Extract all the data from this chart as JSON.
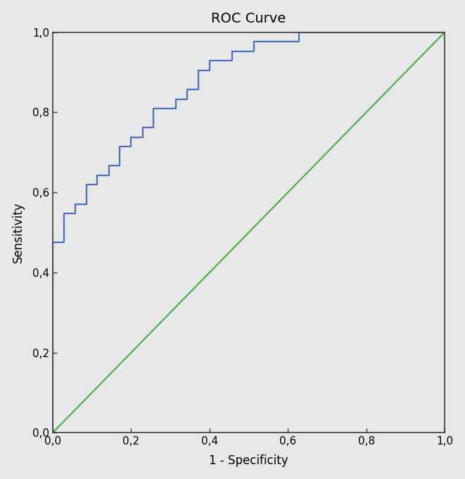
{
  "title": "ROC Curve",
  "xlabel": "1 - Specificity",
  "ylabel": "Sensitivity",
  "xlim": [
    0.0,
    1.0
  ],
  "ylim": [
    0.0,
    1.0
  ],
  "xticks": [
    0.0,
    0.2,
    0.4,
    0.6,
    0.8,
    1.0
  ],
  "yticks": [
    0.0,
    0.2,
    0.4,
    0.6,
    0.8,
    1.0
  ],
  "tick_labels": [
    "0,0",
    "0,2",
    "0,4",
    "0,6",
    "0,8",
    "1,0"
  ],
  "plot_bg_color": "#e8e8e8",
  "fig_bg_color": "#e8e8e8",
  "roc_color": "#4a6fbd",
  "diagonal_color": "#4caf50",
  "roc_linewidth": 1.6,
  "diagonal_linewidth": 1.6,
  "title_fontsize": 14,
  "label_fontsize": 12,
  "tick_fontsize": 11,
  "roc_x": [
    0.0,
    0.0,
    0.029,
    0.029,
    0.057,
    0.057,
    0.086,
    0.086,
    0.114,
    0.114,
    0.143,
    0.143,
    0.171,
    0.171,
    0.2,
    0.2,
    0.229,
    0.229,
    0.257,
    0.257,
    0.314,
    0.314,
    0.343,
    0.343,
    0.371,
    0.371,
    0.4,
    0.4,
    0.457,
    0.457,
    0.514,
    0.514,
    0.571,
    0.571,
    0.629,
    0.629,
    1.0
  ],
  "roc_y": [
    0.0,
    0.476,
    0.476,
    0.548,
    0.548,
    0.571,
    0.571,
    0.619,
    0.619,
    0.643,
    0.643,
    0.667,
    0.667,
    0.714,
    0.714,
    0.738,
    0.738,
    0.762,
    0.762,
    0.81,
    0.81,
    0.833,
    0.833,
    0.857,
    0.857,
    0.905,
    0.905,
    0.929,
    0.929,
    0.952,
    0.952,
    0.976,
    0.976,
    0.976,
    0.976,
    1.0,
    1.0
  ]
}
